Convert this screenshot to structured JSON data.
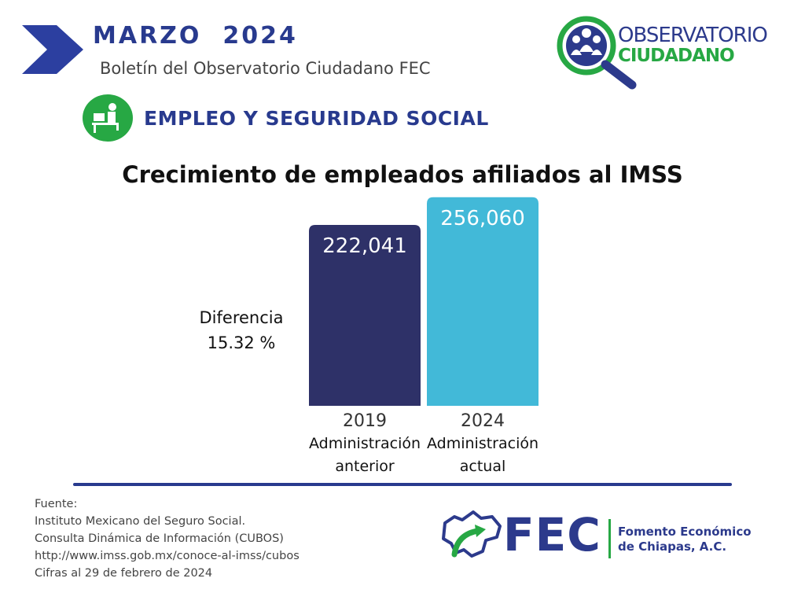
{
  "header": {
    "month": "MARZO  2024",
    "bulletin": "Boletín del Observatorio Ciudadano FEC"
  },
  "observatorio_logo": {
    "line1": "OBSERVATORIO",
    "line2": "CIUDADANO",
    "icon": "magnifier-people-icon"
  },
  "section": {
    "title": "EMPLEO Y SEGURIDAD SOCIAL",
    "icon": "worker-desk-icon"
  },
  "colors": {
    "navy": "#283a8e",
    "green": "#27a844",
    "bar_2019": "#2e3168",
    "bar_2024": "#42b9d8"
  },
  "chart_data": {
    "type": "bar",
    "title": "Crecimiento de empleados afiliados al IMSS",
    "categories": [
      "2019",
      "2024"
    ],
    "category_sublabels": [
      [
        "Administración",
        "anterior"
      ],
      [
        "Administración",
        "actual"
      ]
    ],
    "values": [
      222041,
      256060
    ],
    "value_labels": [
      "222,041",
      "256,060"
    ],
    "ylim": [
      0,
      280000
    ],
    "grid": false,
    "annotation": {
      "line1": "Diferencia",
      "line2": "15.32 %"
    }
  },
  "footer": {
    "source_lines": [
      "Fuente:",
      "Instituto Mexicano del Seguro Social.",
      "Consulta Dinámica de Información (CUBOS)",
      "http://www.imss.gob.mx/conoce-al-imss/cubos",
      "Cifras al 29 de febrero de 2024"
    ],
    "fec_logo": {
      "acronym": "FEC",
      "name_line1": "Fomento Económico",
      "name_line2": "de Chiapas, A.C.",
      "icon": "chiapas-map-arrow-icon"
    }
  }
}
